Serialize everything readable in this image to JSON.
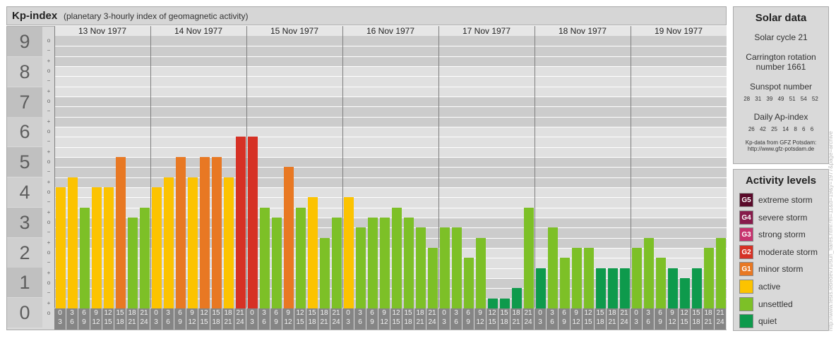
{
  "header": {
    "title": "Kp-index",
    "subtitle": "(planetary 3-hourly index of geomagnetic activity)"
  },
  "kp_levels": [
    "9",
    "8",
    "7",
    "6",
    "5",
    "4",
    "3",
    "2",
    "1",
    "0"
  ],
  "sub_labels": [
    "o",
    "−",
    "+",
    "o",
    "−",
    "+",
    "o",
    "−",
    "+",
    "o",
    "−",
    "+",
    "o",
    "−",
    "+",
    "o",
    "−",
    "+",
    "o",
    "−",
    "+",
    "o",
    "−",
    "+",
    "o",
    "−",
    "+",
    "o"
  ],
  "time_ticks": [
    [
      "0",
      "3"
    ],
    [
      "3",
      "6"
    ],
    [
      "6",
      "9"
    ],
    [
      "9",
      "12"
    ],
    [
      "12",
      "15"
    ],
    [
      "15",
      "18"
    ],
    [
      "18",
      "21"
    ],
    [
      "21",
      "24"
    ]
  ],
  "colors": {
    "quiet": "#0e9a4c",
    "unsettled": "#7dc027",
    "active": "#fcc300",
    "g1": "#e87823",
    "g2": "#d63125",
    "g3": "#c7326e",
    "g4": "#871b4b",
    "g5": "#5a0a2a"
  },
  "chart_data": {
    "type": "bar",
    "ylim": [
      0,
      9
    ],
    "days": [
      "13 Nov 1977",
      "14 Nov 1977",
      "15 Nov 1977",
      "16 Nov 1977",
      "17 Nov 1977",
      "18 Nov 1977",
      "19 Nov 1977"
    ],
    "values": [
      [
        4.0,
        4.333,
        3.333,
        4.0,
        4.0,
        5.0,
        3.0,
        3.333
      ],
      [
        4.0,
        4.333,
        5.0,
        4.333,
        5.0,
        5.0,
        4.333,
        5.667
      ],
      [
        5.667,
        3.333,
        3.0,
        4.667,
        3.333,
        3.667,
        2.333,
        3.0
      ],
      [
        3.667,
        2.667,
        3.0,
        3.0,
        3.333,
        3.0,
        2.667,
        2.0
      ],
      [
        2.667,
        2.667,
        1.667,
        2.333,
        0.333,
        0.333,
        0.667,
        3.333
      ],
      [
        1.333,
        2.667,
        1.667,
        2.0,
        2.0,
        1.333,
        1.333,
        1.333
      ],
      [
        2.0,
        2.333,
        1.667,
        1.333,
        1.0,
        1.333,
        2.0,
        2.333
      ]
    ],
    "levels": [
      [
        "active",
        "active",
        "unsettled",
        "active",
        "active",
        "g1",
        "unsettled",
        "unsettled"
      ],
      [
        "active",
        "active",
        "g1",
        "active",
        "g1",
        "g1",
        "active",
        "g2"
      ],
      [
        "g2",
        "unsettled",
        "unsettled",
        "g1",
        "unsettled",
        "active",
        "unsettled",
        "unsettled"
      ],
      [
        "active",
        "unsettled",
        "unsettled",
        "unsettled",
        "unsettled",
        "unsettled",
        "unsettled",
        "unsettled"
      ],
      [
        "unsettled",
        "unsettled",
        "unsettled",
        "unsettled",
        "quiet",
        "quiet",
        "quiet",
        "unsettled"
      ],
      [
        "quiet",
        "unsettled",
        "unsettled",
        "unsettled",
        "unsettled",
        "quiet",
        "quiet",
        "quiet"
      ],
      [
        "unsettled",
        "unsettled",
        "unsettled",
        "quiet",
        "quiet",
        "quiet",
        "unsettled",
        "unsettled"
      ]
    ]
  },
  "solar": {
    "title": "Solar data",
    "cycle": "Solar cycle 21",
    "carrington_line1": "Carrington rotation",
    "carrington_line2": "number 1661",
    "sunspot_title": "Sunspot number",
    "sunspot_values": "28 31 39 49 51 54 52",
    "ap_title": "Daily Ap-index",
    "ap_values": "26 42 25 14 8 6 6",
    "source_line1": "Kp-data from GFZ Potsdam:",
    "source_line2": "http://www.gfz-potsdam.de"
  },
  "legend": {
    "title": "Activity levels",
    "items": [
      {
        "badge": "G5",
        "label": "extreme storm",
        "color": "#5a0a2a"
      },
      {
        "badge": "G4",
        "label": "severe storm",
        "color": "#871b4b"
      },
      {
        "badge": "G3",
        "label": "strong storm",
        "color": "#c7326e"
      },
      {
        "badge": "G2",
        "label": "moderate storm",
        "color": "#d63125"
      },
      {
        "badge": "G1",
        "label": "minor storm",
        "color": "#e87823"
      },
      {
        "badge": "",
        "label": "active",
        "color": "#fcc300"
      },
      {
        "badge": "",
        "label": "unsettled",
        "color": "#7dc027"
      },
      {
        "badge": "",
        "label": "quiet",
        "color": "#0e9a4c"
      }
    ]
  },
  "watermark": "http://www.tesis.lebedev.ru/sun_flares.html?m=11&d=19&y=1977&page=archive"
}
